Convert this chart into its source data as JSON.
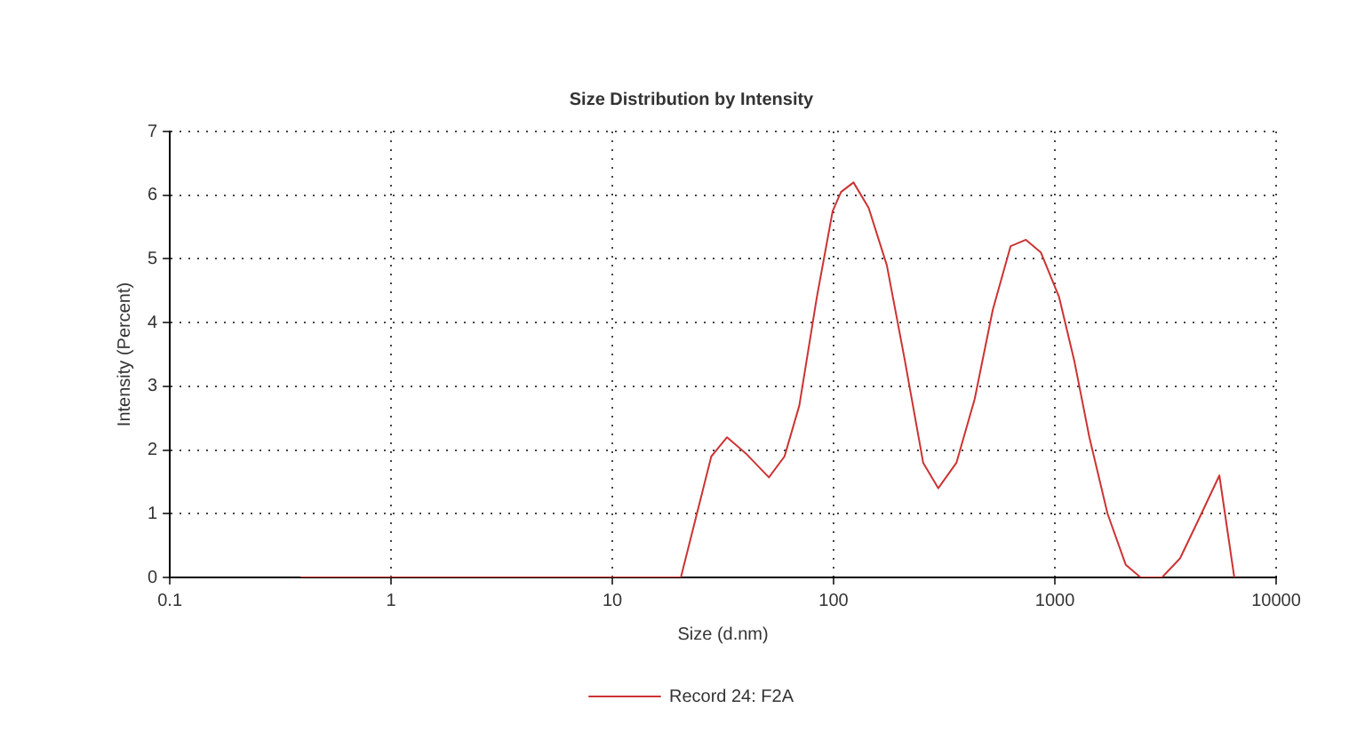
{
  "chart_data": {
    "type": "line",
    "title": "Size Distribution by Intensity",
    "xlabel": "Size (d.nm)",
    "ylabel": "Intensity (Percent)",
    "log": "x",
    "xlim": [
      0.1,
      10000
    ],
    "xticks": [
      0.1,
      1,
      10,
      100,
      1000,
      10000
    ],
    "ylim": [
      0,
      7
    ],
    "yticks": [
      0,
      1,
      2,
      3,
      4,
      5,
      6,
      7
    ],
    "grid": true,
    "legend": "bottom",
    "marker": "none",
    "line_style": "solid",
    "series": [
      {
        "name": "Record 24: F2A",
        "color": "#cc3333",
        "x": [
          0.39,
          1,
          5,
          10,
          20.4,
          28,
          33,
          40,
          51,
          60,
          70,
          84,
          99,
          108,
          123,
          144,
          174,
          210,
          254,
          297,
          359,
          434,
          524,
          631,
          740,
          865,
          1045,
          1224,
          1432,
          1730,
          2090,
          2440,
          3050,
          3680,
          4450,
          5540,
          6470
        ],
        "values": [
          0,
          0,
          0,
          0,
          0,
          1.9,
          2.2,
          1.95,
          1.57,
          1.9,
          2.7,
          4.4,
          5.75,
          6.05,
          6.2,
          5.8,
          4.9,
          3.4,
          1.8,
          1.4,
          1.8,
          2.8,
          4.2,
          5.2,
          5.3,
          5.1,
          4.4,
          3.4,
          2.2,
          1.0,
          0.2,
          0,
          0,
          0.3,
          0.9,
          1.6,
          0
        ]
      }
    ]
  }
}
